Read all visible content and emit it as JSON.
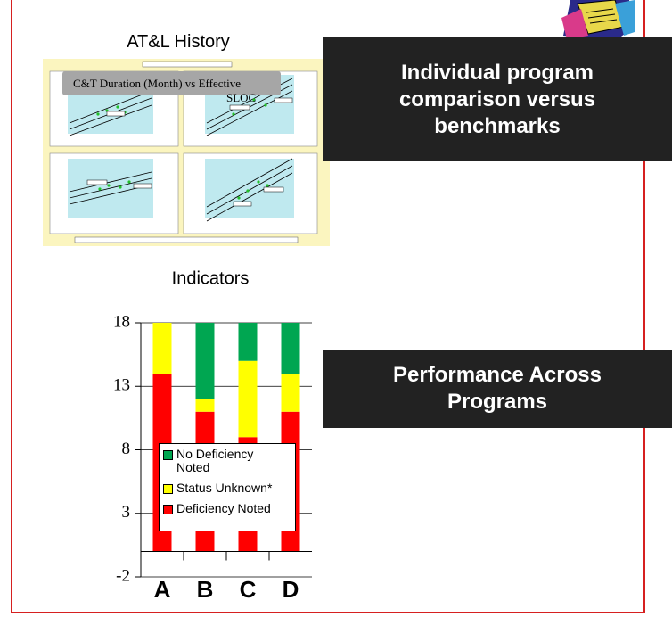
{
  "history_title": "AT&L History",
  "thumbnail_caption": "C&T Duration (Month) vs Effective SLOC",
  "box_top": "Individual program comparison versus benchmarks",
  "box_bottom": "Performance Across Programs",
  "chart_data": {
    "type": "stacked_bar",
    "title": "Indicators",
    "categories": [
      "A",
      "B",
      "C",
      "D"
    ],
    "series": [
      {
        "name": "Deficiency Noted",
        "color": "#ff0000",
        "values": [
          14,
          11,
          9,
          11
        ]
      },
      {
        "name": "Status Unknown*",
        "color": "#ffff00",
        "values": [
          4,
          1,
          6,
          3
        ]
      },
      {
        "name": "No Deficiency Noted",
        "color": "#00a651",
        "values": [
          0,
          6,
          3,
          4
        ]
      }
    ],
    "ylim": [
      -2,
      18
    ],
    "yticks": [
      18,
      13,
      8,
      3,
      -2
    ],
    "grid": true
  }
}
